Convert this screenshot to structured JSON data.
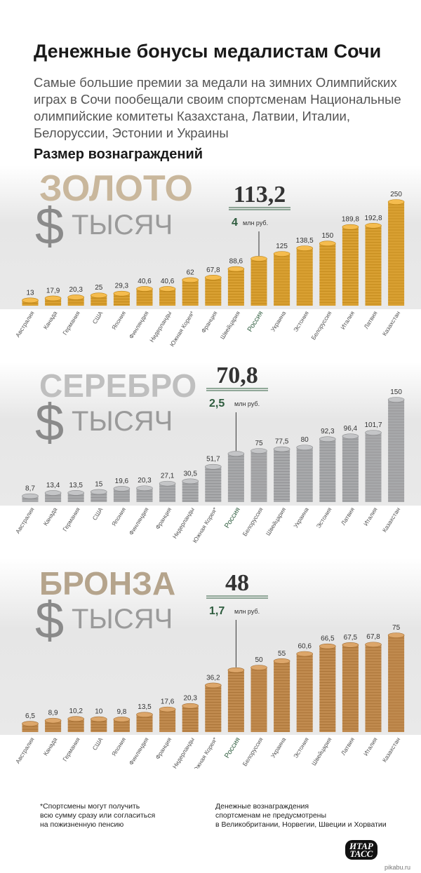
{
  "title": "Денежные бонусы медалистам Сочи",
  "subtitle": "Самые большие премии за медали на зимних Олимпийских играх в Сочи пообещали своим спортсменам Национальные олимпийские комитеты Казахстана, Латвии, Италии, Белоруссии, Эстонии и Украины",
  "section_heading": "Размер вознаграждений",
  "currency_symbol": "$",
  "unit_word": "ТЫСЯЧ",
  "rub_unit": "млн руб.",
  "footnote_left": [
    "*Спортсмены могут получить",
    "всю сумму сразу или согласиться",
    "на пожизненную пенсию"
  ],
  "footnote_right": [
    "Денежные вознаграждения",
    "спортсменам не предусмотрены",
    "в Великобритании, Норвегии, Швеции и Хорватии"
  ],
  "logo_lines": [
    "ИТАР",
    "ТАСС"
  ],
  "watermark": "pikabu.ru",
  "colors": {
    "gold": "#d9a032",
    "silver": "#a8a9ab",
    "bronze": "#c08a4e",
    "russia_text": "#2e5c3e",
    "band": "#e9e9e9"
  },
  "chart_data": [
    {
      "type": "bar",
      "title": "ЗОЛОТО",
      "highlight": "Россия",
      "highlight_value": "113,2",
      "highlight_rub": "4",
      "categories": [
        "Австралия",
        "Канада",
        "Германия",
        "США",
        "Япония",
        "Финляндия",
        "Нидерланды",
        "Южная Корея*",
        "Франция",
        "Швейцария",
        "Россия",
        "Украина",
        "Эстония",
        "Белоруссия",
        "Италия",
        "Латвия",
        "Казахстан"
      ],
      "labels": [
        "13",
        "17,9",
        "20,3",
        "25",
        "29,3",
        "40,6",
        "40,6",
        "62",
        "67,8",
        "88,6",
        "",
        "125",
        "138,5",
        "150",
        "189,8",
        "192,8",
        "250"
      ],
      "values": [
        13,
        17.9,
        20.3,
        25,
        29.3,
        40.6,
        40.6,
        62,
        67.8,
        88.6,
        113.2,
        125,
        138.5,
        150,
        189.8,
        192.8,
        250
      ],
      "ylim": [
        0,
        250
      ]
    },
    {
      "type": "bar",
      "title": "СЕРЕБРО",
      "highlight": "Россия",
      "highlight_value": "70,8",
      "highlight_rub": "2,5",
      "categories": [
        "Австралия",
        "Канада",
        "Германия",
        "США",
        "Япония",
        "Финляндия",
        "Франция",
        "Нидерланды",
        "Южная Корея*",
        "Россия",
        "Белоруссия",
        "Швейцария",
        "Украина",
        "Эстония",
        "Латвия",
        "Италия",
        "Казахстан"
      ],
      "labels": [
        "8,7",
        "13,4",
        "13,5",
        "15",
        "19,6",
        "20,3",
        "27,1",
        "30,5",
        "51,7",
        "",
        "75",
        "77,5",
        "80",
        "92,3",
        "96,4",
        "101,7",
        "150"
      ],
      "values": [
        8.7,
        13.4,
        13.5,
        15,
        19.6,
        20.3,
        27.1,
        30.5,
        51.7,
        70.8,
        75,
        77.5,
        80,
        92.3,
        96.4,
        101.7,
        150
      ],
      "ylim": [
        0,
        150
      ]
    },
    {
      "type": "bar",
      "title": "БРОНЗА",
      "highlight": "Россия",
      "highlight_value": "48",
      "highlight_rub": "1,7",
      "categories": [
        "Австралия",
        "Канада",
        "Германия",
        "США",
        "Япония",
        "Финляндия",
        "Франция",
        "Нидерланды",
        "Южная Корея*",
        "Россия",
        "Белоруссия",
        "Украина",
        "Эстония",
        "Швейцария",
        "Латвия",
        "Италия",
        "Казахстан"
      ],
      "labels": [
        "6,5",
        "8,9",
        "10,2",
        "10",
        "9,8",
        "13,5",
        "17,6",
        "20,3",
        "36,2",
        "",
        "50",
        "55",
        "60,6",
        "66,5",
        "67,5",
        "67,8",
        "75"
      ],
      "values": [
        6.5,
        8.9,
        10.2,
        10,
        9.8,
        13.5,
        17.6,
        20.3,
        36.2,
        48,
        50,
        55,
        60.6,
        66.5,
        67.5,
        67.8,
        75
      ],
      "ylim": [
        0,
        75
      ]
    }
  ]
}
